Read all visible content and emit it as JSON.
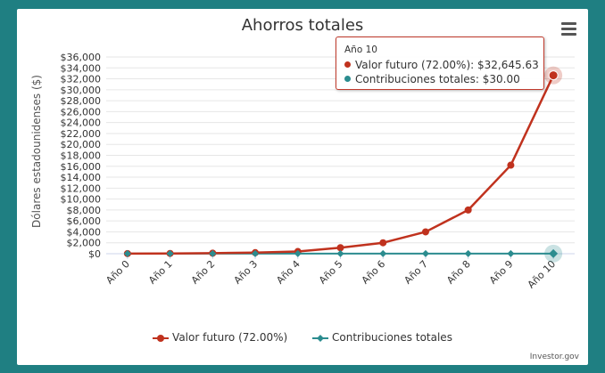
{
  "chart_data": {
    "type": "line",
    "title": "Ahorros totales",
    "ylabel": "Dólares estadounidenses ($)",
    "xlabel": "",
    "categories": [
      "Año 0",
      "Año 1",
      "Año 2",
      "Año 3",
      "Año 4",
      "Año 5",
      "Año 6",
      "Año 7",
      "Año 8",
      "Año 9",
      "Año 10"
    ],
    "yticks": [
      0,
      2000,
      4000,
      6000,
      8000,
      10000,
      12000,
      14000,
      16000,
      18000,
      20000,
      22000,
      24000,
      26000,
      28000,
      30000,
      32000,
      34000,
      36000
    ],
    "ytick_labels": [
      "$0",
      "$2,000",
      "$4,000",
      "$6,000",
      "$8,000",
      "$10,000",
      "$12,000",
      "$14,000",
      "$16,000",
      "$18,000",
      "$20,000",
      "$22,000",
      "$24,000",
      "$26,000",
      "$28,000",
      "$30,000",
      "$32,000",
      "$34,000",
      "$36,000"
    ],
    "ylim": [
      0,
      36000
    ],
    "grid": true,
    "legend_position": "bottom",
    "series": [
      {
        "name": "Valor futuro (72.00%)",
        "color": "#c0321e",
        "values": [
          30,
          50,
          100,
          200,
          400,
          1100,
          2000,
          4000,
          8000,
          16200,
          32645.63
        ]
      },
      {
        "name": "Contribuciones totales",
        "color": "#2b8c8f",
        "values": [
          30,
          30,
          30,
          30,
          30,
          30,
          30,
          30,
          30,
          30,
          30
        ]
      }
    ]
  },
  "tooltip": {
    "header": "Año 10",
    "rows": [
      {
        "label": "Valor futuro (72.00%): ",
        "value": "$32,645.63",
        "color": "#c0321e"
      },
      {
        "label": "Contribuciones totales: ",
        "value": "$30.00",
        "color": "#2b8c8f"
      }
    ]
  },
  "credits": "Investor.gov"
}
